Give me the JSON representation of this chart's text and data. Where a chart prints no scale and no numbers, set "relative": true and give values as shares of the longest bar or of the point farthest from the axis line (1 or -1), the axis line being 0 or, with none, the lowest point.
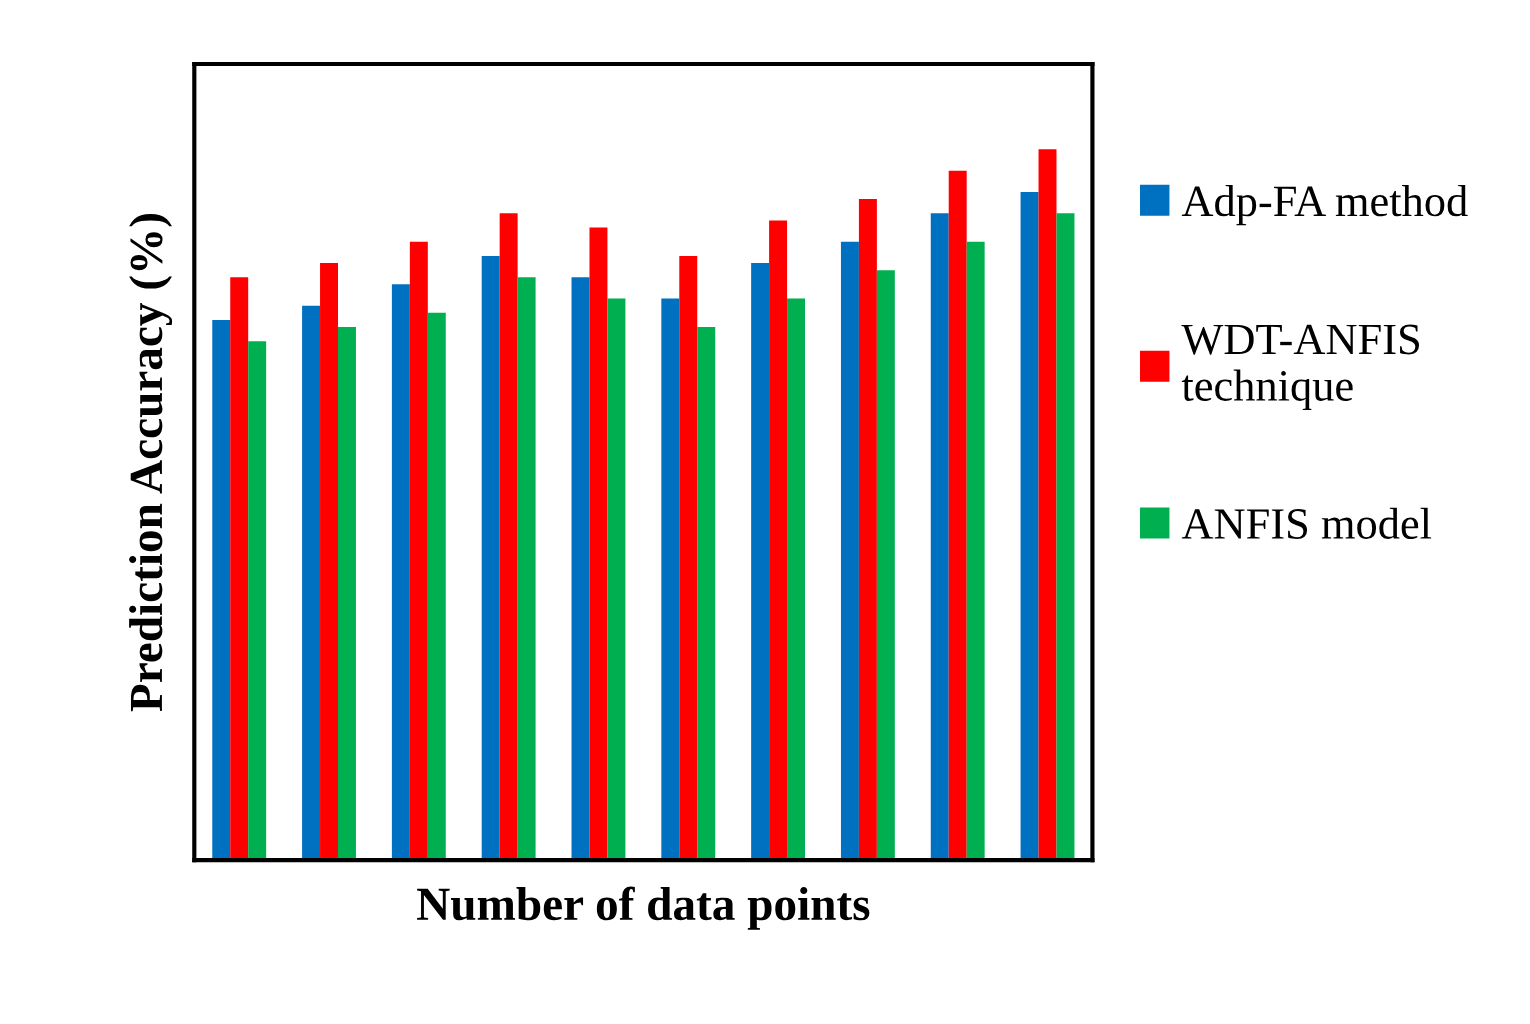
{
  "chart_data": {
    "type": "bar",
    "relative": true,
    "xlabel": "Number of data points",
    "ylabel": "Prediction Accuracy (%)",
    "categories": [
      null,
      null,
      null,
      null,
      null,
      null,
      null,
      null,
      null,
      null
    ],
    "series": [
      {
        "name": "Adp-FA method",
        "color": "#0070c0",
        "values": [
          0.76,
          0.78,
          0.81,
          0.85,
          0.82,
          0.79,
          0.84,
          0.87,
          0.91,
          0.94
        ]
      },
      {
        "name": "WDT-ANFIS technique",
        "color": "#ff0000",
        "values": [
          0.82,
          0.84,
          0.87,
          0.91,
          0.89,
          0.85,
          0.9,
          0.93,
          0.97,
          1
        ]
      },
      {
        "name": "ANFIS model",
        "color": "#00b050",
        "values": [
          0.73,
          0.75,
          0.77,
          0.82,
          0.79,
          0.75,
          0.79,
          0.83,
          0.87,
          0.91
        ]
      }
    ],
    "legend": "right",
    "grid": false
  }
}
